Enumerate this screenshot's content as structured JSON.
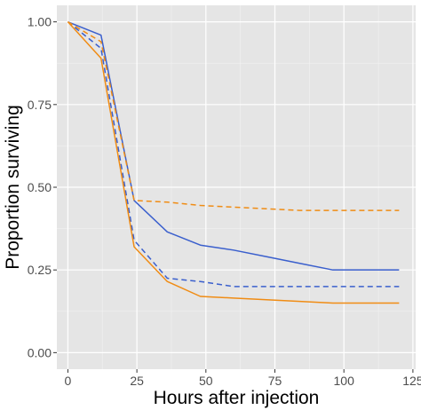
{
  "chart_data": {
    "type": "line",
    "title": "",
    "xlabel": "Hours after injection",
    "ylabel": "Proportion surviving",
    "xlim": [
      -4,
      126
    ],
    "ylim": [
      -0.05,
      1.05
    ],
    "x_ticks": [
      0,
      25,
      50,
      75,
      100,
      125
    ],
    "x_tick_labels": [
      "0",
      "25",
      "50",
      "75",
      "100",
      "125"
    ],
    "y_ticks": [
      0,
      0.25,
      0.5,
      0.75,
      1
    ],
    "y_tick_labels": [
      "0.00",
      "0.25",
      "0.50",
      "0.75",
      "1.00"
    ],
    "grid": true,
    "legend": "none",
    "panel_background": "#e5e5e5",
    "series": [
      {
        "color": "#3a5fcd",
        "dash": "solid",
        "x": [
          0,
          12,
          24,
          36,
          48,
          60,
          72,
          84,
          96,
          108,
          120
        ],
        "y": [
          1.0,
          0.96,
          0.46,
          0.365,
          0.325,
          0.31,
          0.29,
          0.27,
          0.25,
          0.25,
          0.25
        ]
      },
      {
        "color": "#3a5fcd",
        "dash": "dashed",
        "x": [
          0,
          12,
          24,
          36,
          48,
          60,
          72,
          84,
          96,
          108,
          120
        ],
        "y": [
          1.0,
          0.92,
          0.34,
          0.225,
          0.215,
          0.2,
          0.2,
          0.2,
          0.2,
          0.2,
          0.2
        ]
      },
      {
        "color": "#f08c14",
        "dash": "solid",
        "x": [
          0,
          12,
          24,
          36,
          48,
          60,
          72,
          84,
          96,
          108,
          120
        ],
        "y": [
          1.0,
          0.89,
          0.32,
          0.215,
          0.17,
          0.165,
          0.16,
          0.155,
          0.15,
          0.15,
          0.15
        ]
      },
      {
        "color": "#f08c14",
        "dash": "dashed",
        "x": [
          0,
          12,
          24,
          36,
          48,
          60,
          72,
          84,
          96,
          108,
          120
        ],
        "y": [
          1.0,
          0.94,
          0.46,
          0.455,
          0.445,
          0.44,
          0.435,
          0.43,
          0.43,
          0.43,
          0.43
        ]
      }
    ]
  }
}
